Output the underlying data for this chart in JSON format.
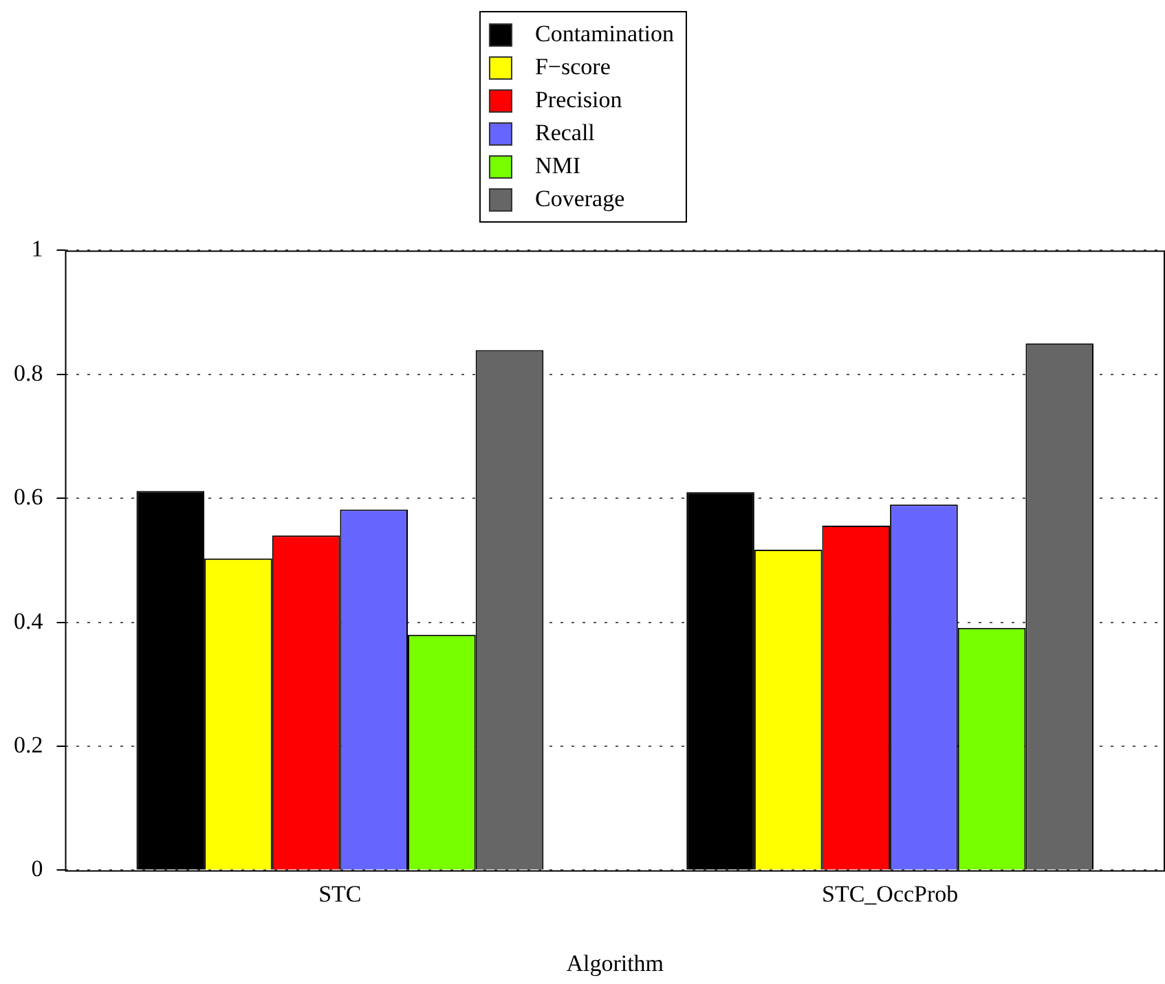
{
  "chart_data": {
    "type": "bar",
    "xlabel": "Algorithm",
    "categories": [
      "STC",
      "STC_OccProb"
    ],
    "series": [
      {
        "name": "Contamination",
        "color": "#000000",
        "values": [
          0.612,
          0.61
        ]
      },
      {
        "name": "F−score",
        "color": "#ffff00",
        "values": [
          0.503,
          0.517
        ]
      },
      {
        "name": "Precision",
        "color": "#ff0000",
        "values": [
          0.54,
          0.556
        ]
      },
      {
        "name": "Recall",
        "color": "#6666ff",
        "values": [
          0.582,
          0.59
        ]
      },
      {
        "name": "NMI",
        "color": "#77ff00",
        "values": [
          0.38,
          0.391
        ]
      },
      {
        "name": "Coverage",
        "color": "#666666",
        "values": [
          0.839,
          0.85
        ]
      }
    ],
    "ylim": [
      0,
      1
    ],
    "yticks": [
      0,
      0.2,
      0.4,
      0.6,
      0.8,
      1
    ],
    "grid": "y",
    "legend": "top"
  }
}
